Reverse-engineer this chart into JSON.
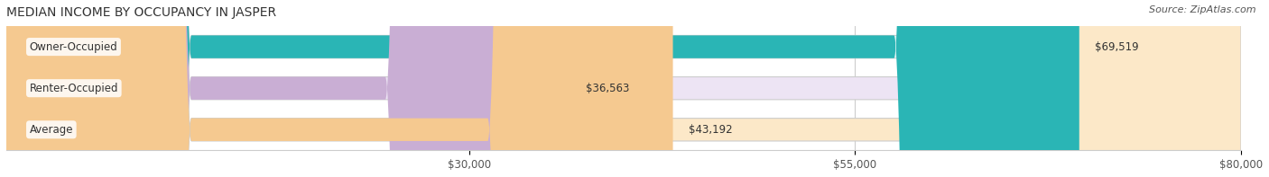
{
  "title": "MEDIAN INCOME BY OCCUPANCY IN JASPER",
  "source": "Source: ZipAtlas.com",
  "categories": [
    "Owner-Occupied",
    "Renter-Occupied",
    "Average"
  ],
  "values": [
    69519,
    36563,
    43192
  ],
  "labels": [
    "$69,519",
    "$36,563",
    "$43,192"
  ],
  "bar_colors": [
    "#2ab5b5",
    "#c9aed4",
    "#f5c990"
  ],
  "bar_background_colors": [
    "#d8f2f2",
    "#ede4f4",
    "#fce8c8"
  ],
  "xmin": 0,
  "xmax": 80000,
  "xticks": [
    30000,
    55000,
    80000
  ],
  "xticklabels": [
    "$30,000",
    "$55,000",
    "$80,000"
  ],
  "figsize": [
    14.06,
    1.97
  ],
  "dpi": 100,
  "background_color": "#ffffff",
  "bar_height": 0.55,
  "title_fontsize": 10,
  "label_fontsize": 8.5,
  "tick_fontsize": 8.5,
  "source_fontsize": 8
}
